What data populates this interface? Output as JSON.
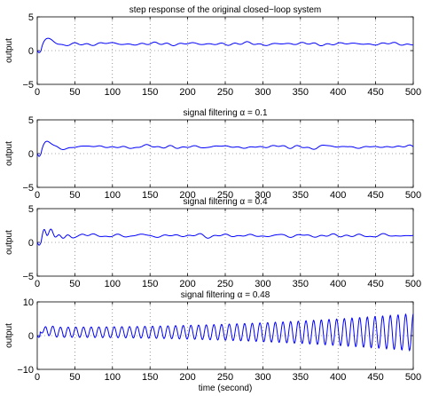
{
  "chart_data": [
    {
      "type": "line",
      "title": "step response of the original closed−loop system",
      "xlabel": "",
      "ylabel": "output",
      "xlim": [
        0,
        500
      ],
      "ylim": [
        -5,
        5
      ],
      "xticks": [
        "0",
        "50",
        "100",
        "150",
        "200",
        "250",
        "300",
        "350",
        "400",
        "450",
        "500"
      ],
      "yticks": [
        "−5",
        "0",
        "5"
      ],
      "grid": true,
      "series": [
        {
          "color": "#0000ff",
          "response": {
            "initial_dip": -0.3,
            "peak_time": 16,
            "peak": 2.4,
            "settle": 1.0,
            "ripple": 0.25,
            "growth": 0.0
          }
        }
      ]
    },
    {
      "type": "line",
      "title": "signal filtering α = 0.1",
      "xlabel": "",
      "ylabel": "output",
      "xlim": [
        0,
        500
      ],
      "ylim": [
        -5,
        5
      ],
      "xticks": [
        "0",
        "50",
        "100",
        "150",
        "200",
        "250",
        "300",
        "350",
        "400",
        "450",
        "500"
      ],
      "yticks": [
        "−5",
        "0",
        "5"
      ],
      "grid": true,
      "series": [
        {
          "color": "#0000ff",
          "response": {
            "initial_dip": -0.4,
            "peak_time": 16,
            "peak": 2.5,
            "settle": 1.0,
            "ripple": 0.3,
            "growth": 0.0
          }
        }
      ]
    },
    {
      "type": "line",
      "title": "signal filtering α = 0.4",
      "xlabel": "",
      "ylabel": "output",
      "xlim": [
        0,
        500
      ],
      "ylim": [
        -5,
        5
      ],
      "xticks": [
        "0",
        "50",
        "100",
        "150",
        "200",
        "250",
        "300",
        "350",
        "400",
        "450",
        "500"
      ],
      "yticks": [
        "−5",
        "0",
        "5"
      ],
      "grid": true,
      "series": [
        {
          "color": "#0000ff",
          "response": {
            "initial_dip": -0.4,
            "peak_time": 15,
            "peak": 2.6,
            "settle": 1.0,
            "ripple": 0.3,
            "growth": 0.0,
            "early_osc": 1.4
          }
        }
      ]
    },
    {
      "type": "line",
      "title": "signal filtering α = 0.48",
      "xlabel": "time (second)",
      "ylabel": "output",
      "xlim": [
        0,
        500
      ],
      "ylim": [
        -10,
        10
      ],
      "xticks": [
        "0",
        "50",
        "100",
        "150",
        "200",
        "250",
        "300",
        "350",
        "400",
        "450",
        "500"
      ],
      "yticks": [
        "−10",
        "0",
        "10"
      ],
      "grid": true,
      "series": [
        {
          "color": "#0000ff",
          "response": {
            "initial_dip": -0.5,
            "peak_time": 15,
            "peak": 2.7,
            "settle": 1.0,
            "osc_period": 10.2,
            "base_amp": 1.5,
            "end_amp": 5.5
          }
        }
      ]
    }
  ]
}
